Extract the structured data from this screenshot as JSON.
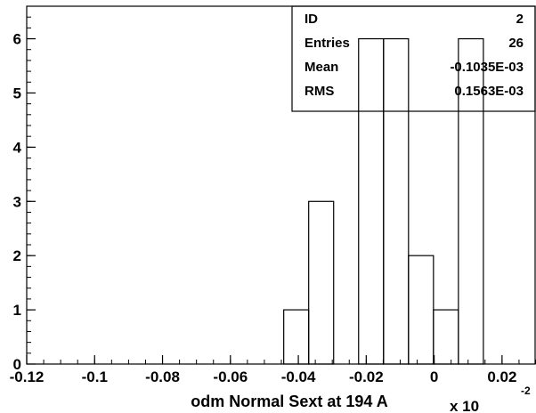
{
  "chart_data": {
    "type": "bar",
    "title": "",
    "xlabel": "odm Normal Sext at 194 A",
    "ylabel": "",
    "x_scale_note": {
      "base": "x 10",
      "exponent": "-2"
    },
    "xlim": [
      -0.12,
      0.03
    ],
    "ylim": [
      0,
      6.6
    ],
    "x_ticks": [
      "-0.12",
      "-0.1",
      "-0.08",
      "-0.06",
      "-0.04",
      "-0.02",
      "0",
      "0.02"
    ],
    "x_tick_values": [
      -0.12,
      -0.1,
      -0.08,
      -0.06,
      -0.04,
      -0.02,
      0,
      0.02
    ],
    "y_ticks": [
      "0",
      "1",
      "2",
      "3",
      "4",
      "5",
      "6"
    ],
    "y_tick_values": [
      0,
      1,
      2,
      3,
      4,
      5,
      6
    ],
    "bin_width": 0.00735,
    "bins": [
      {
        "x_low": -0.0443,
        "count": 1
      },
      {
        "x_low": -0.03695,
        "count": 3
      },
      {
        "x_low": -0.0296,
        "count": 0
      },
      {
        "x_low": -0.02225,
        "count": 6
      },
      {
        "x_low": -0.0149,
        "count": 6
      },
      {
        "x_low": -0.00755,
        "count": 2
      },
      {
        "x_low": -0.0002,
        "count": 1
      },
      {
        "x_low": 0.00715,
        "count": 6
      }
    ],
    "stats": [
      {
        "label": "ID",
        "value": "2"
      },
      {
        "label": "Entries",
        "value": "26"
      },
      {
        "label": "Mean",
        "value": "-0.1035E-03"
      },
      {
        "label": "RMS",
        "value": "0.1563E-03"
      }
    ],
    "grid": false
  }
}
